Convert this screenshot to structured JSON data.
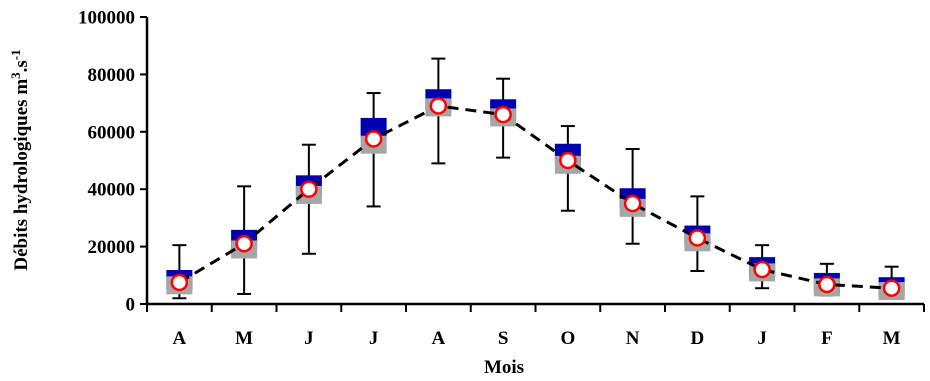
{
  "chart_data": {
    "type": "line",
    "xlabel": "Mois",
    "ylabel": "Débits hydrologiques m",
    "ylabel_unit_sup1": "3",
    "ylabel_unit_mid": ".s",
    "ylabel_unit_sup2": "-1",
    "categories": [
      "A",
      "M",
      "J",
      "J",
      "A",
      "S",
      "O",
      "N",
      "D",
      "J",
      "F",
      "M"
    ],
    "ylim": [
      0,
      100000
    ],
    "yticks": [
      0,
      20000,
      40000,
      60000,
      80000,
      100000
    ],
    "ytick_labels": [
      "0",
      "20000",
      "40000",
      "60000",
      "80000",
      "100000"
    ],
    "grid": false,
    "series": [
      {
        "marker": "blue-square",
        "values": [
          8000,
          22000,
          41000,
          61000,
          71000,
          67500,
          52000,
          36500,
          23500,
          12500,
          7000,
          5500
        ]
      },
      {
        "marker": "grey-square",
        "values": [
          6500,
          19000,
          38000,
          55500,
          68500,
          65000,
          48500,
          33500,
          21500,
          11000,
          5800,
          4500
        ]
      },
      {
        "marker": "red-circle-dashed-line",
        "values": [
          7500,
          21000,
          40000,
          57500,
          69000,
          66000,
          50000,
          35000,
          23000,
          12000,
          6800,
          5500
        ],
        "error_high": [
          20500,
          41000,
          55500,
          73500,
          85500,
          78500,
          62000,
          54000,
          37500,
          20500,
          14000,
          13000
        ],
        "error_low": [
          2000,
          3500,
          17500,
          34000,
          49000,
          51000,
          32500,
          21000,
          11500,
          5500,
          3000,
          2000
        ]
      }
    ],
    "colors": {
      "blue": "#0000b0",
      "grey": "#a6a6a6",
      "red": "#ff0000",
      "line": "#000000"
    }
  }
}
